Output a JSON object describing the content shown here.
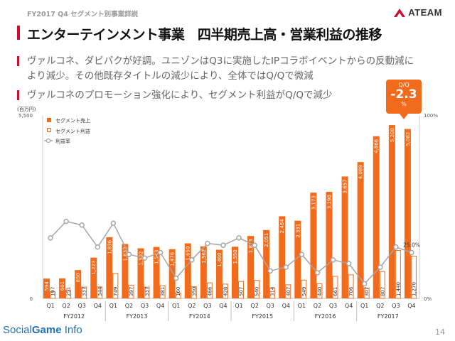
{
  "header": {
    "breadcrumb": "FY2017 Q4 セグメント別事業詳説",
    "title": "エンターテインメント事業　四半期売上高・営業利益の推移",
    "logo_text": "ATEAM"
  },
  "bullets": [
    "ヴァルコネ、ダビパクが好調。ユニゾンはQ3に実施したIPコラボイベントからの反動減により減少。その他既存タイトルの減少により、全体ではQ/Qで微減",
    "ヴァルコネのプロモーション強化により、セグメント利益がQ/Qで減少"
  ],
  "badge": {
    "label": "Q/Q",
    "value": "-2.3",
    "unit": "%"
  },
  "chart_data": {
    "type": "bar",
    "unit_label": "(百万円)",
    "y_left": {
      "min": 0,
      "max": 5500,
      "tick_labels": [
        "0",
        "5,500"
      ]
    },
    "y_right": {
      "min": 0,
      "max": 100,
      "tick_labels": [
        "0%",
        "100%"
      ]
    },
    "categories": [
      "Q1",
      "Q2",
      "Q3",
      "Q4",
      "Q1",
      "Q2",
      "Q3",
      "Q4",
      "Q1",
      "Q2",
      "Q3",
      "Q4",
      "Q1",
      "Q2",
      "Q3",
      "Q4",
      "Q1",
      "Q2",
      "Q3",
      "Q4",
      "Q1",
      "Q2",
      "Q3",
      "Q4"
    ],
    "fiscal_years": [
      "FY2012",
      "FY2013",
      "FY2014",
      "FY2015",
      "FY2016",
      "FY2017"
    ],
    "series": [
      {
        "name": "セグメント売上",
        "kind": "bar",
        "values": [
          594,
          601,
          850,
          1223,
          1836,
          1632,
          1502,
          1543,
          1476,
          1650,
          1562,
          1460,
          1550,
          1873,
          2051,
          2464,
          2331,
          3173,
          3196,
          3657,
          4089,
          4866,
          5200,
          5082
        ],
        "labels": [
          "594",
          "601",
          "850",
          "1,223",
          "1,836",
          "1,632",
          "1,502",
          "1,543",
          "1,476",
          "1,650",
          "1,562",
          "1,460",
          "1,550",
          "1,873",
          "2,051",
          "2,464",
          "2,331",
          "3,173",
          "3,196",
          "3,657",
          "4,089",
          "4,866",
          "5,200",
          "5,082"
        ]
      },
      {
        "name": "セグメント利益",
        "kind": "bar",
        "values": [
          197,
          251,
          337,
          344,
          749,
          397,
          337,
          381,
          160,
          350,
          466,
          428,
          507,
          540,
          314,
          407,
          549,
          440,
          661,
          706,
          307,
          807,
          1440,
          1270
        ],
        "labels": [
          "197",
          "251",
          "337",
          "344",
          "749",
          "397",
          "337",
          "381",
          "160",
          "350",
          "466",
          "428",
          "507",
          "540",
          "314",
          "407",
          "549",
          "440",
          "661",
          "706",
          "307",
          "807",
          "1,440",
          "1,270"
        ]
      },
      {
        "name": "利益率",
        "kind": "line",
        "values": [
          33,
          42,
          40,
          28,
          41,
          24,
          22,
          25,
          11,
          21,
          30,
          29,
          33,
          29,
          15,
          17,
          24,
          14,
          21,
          19,
          8,
          17,
          28,
          25
        ]
      }
    ],
    "annotations": [
      {
        "text": "25.0%"
      }
    ],
    "colors": {
      "sales": "#f26b1d",
      "profit_border": "#f26b1d",
      "margin_line": "#a6a6a6",
      "accent": "#c8102e"
    },
    "legend": "top-left",
    "grid": false
  },
  "footer": {
    "source_logo_a": "Social",
    "source_logo_b": "Game",
    "source_logo_c": " Info",
    "page": "14"
  }
}
